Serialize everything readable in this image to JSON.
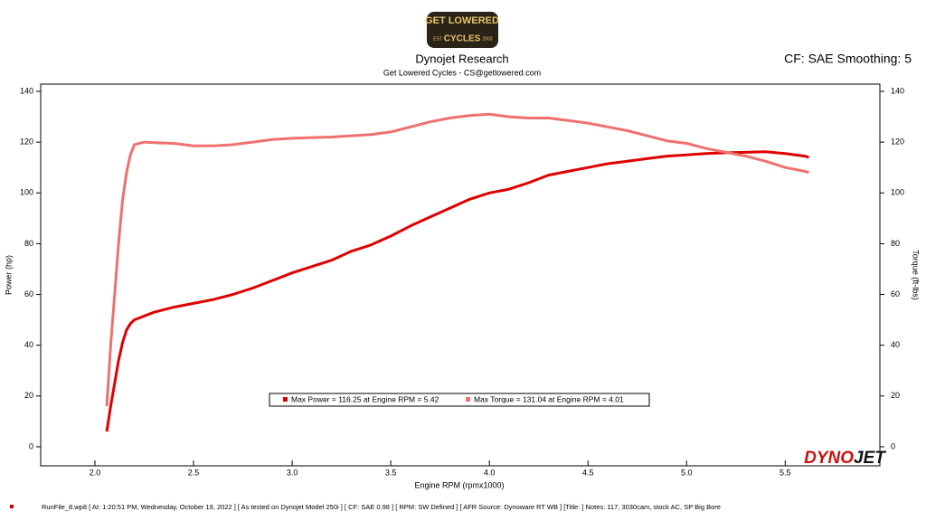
{
  "chart_data": {
    "type": "line",
    "logo": [
      "GET LOWERED",
      "CYCLES",
      "EST",
      "2003"
    ],
    "title": "Dynojet Research",
    "subtitle": "Get Lowered Cycles - CS@getlowered.com",
    "settings_text": "CF: SAE Smoothing: 5",
    "xlabel": "Engine RPM (rpmx1000)",
    "ylabel": "Power (hp)",
    "y2label": "Torque (ft-lbs)",
    "xlim": [
      1.725,
      5.98
    ],
    "ylim": [
      -7.5,
      142.85
    ],
    "y2lim": [
      -7.5,
      142.85
    ],
    "xticks": [
      {
        "value": 2,
        "label": "2.0"
      },
      2.5,
      {
        "value": 3,
        "label": "3.0"
      },
      3.5,
      {
        "value": 4,
        "label": "4.0"
      },
      4.5,
      {
        "value": 5,
        "label": "5.0"
      },
      5.5
    ],
    "yticks": [
      0,
      20,
      40,
      60,
      80,
      100,
      120,
      140
    ],
    "y2ticks": [
      0,
      20,
      40,
      60,
      80,
      100,
      120,
      140
    ],
    "x": [
      2.06,
      2.08,
      2.1,
      2.12,
      2.14,
      2.16,
      2.18,
      2.2,
      2.25,
      2.3,
      2.4,
      2.5,
      2.6,
      2.7,
      2.8,
      2.9,
      3.0,
      3.1,
      3.2,
      3.3,
      3.4,
      3.5,
      3.6,
      3.7,
      3.8,
      3.9,
      4.0,
      4.1,
      4.2,
      4.3,
      4.4,
      4.5,
      4.6,
      4.7,
      4.8,
      4.9,
      5.0,
      5.1,
      5.2,
      5.3,
      5.4,
      5.5,
      5.6,
      5.62
    ],
    "series": [
      {
        "name": "Max Power = 116.25 at Engine RPM = 5.42",
        "color": "#e00000",
        "values": [
          6,
          16,
          25,
          34,
          41,
          46,
          48.5,
          50,
          51.5,
          53,
          55,
          56.5,
          58,
          60,
          62.5,
          65.5,
          68.5,
          71,
          73.5,
          77,
          79.5,
          83,
          87,
          90.5,
          94,
          97.5,
          100,
          101.5,
          104,
          107,
          108.5,
          110,
          111.5,
          112.5,
          113.5,
          114.5,
          115,
          115.5,
          115.8,
          116,
          116.2,
          115.5,
          114.5,
          114
        ]
      },
      {
        "name": "Max Torque = 131.04 at Engine RPM = 4.01",
        "color": "#f07070",
        "axis": "y2",
        "values": [
          16,
          40,
          60,
          80,
          97,
          108,
          115,
          119,
          120,
          119.8,
          119.5,
          118.5,
          118.5,
          119,
          120,
          121,
          121.5,
          121.8,
          122,
          122.5,
          123,
          124,
          126,
          128,
          129.5,
          130.5,
          131,
          130,
          129.5,
          129.5,
          128.5,
          127.5,
          126,
          124.5,
          122.5,
          120.5,
          119.5,
          117.5,
          116,
          114.5,
          112.5,
          110,
          108.5,
          108
        ]
      }
    ],
    "brand": [
      "DYNO",
      "JET"
    ],
    "footer": "RunFile_8.wp8 [ At: 1:20:51 PM, Wednesday, October 19, 2022 ] [ As tested on Dynojet Model 250i ] [ CF: SAE 0.98 ] [ RPM: SW Defined ] [ AFR Source: Dynoware RT WB ] [Title: ]   Notes: 117, 3030cam, stock AC, SP Big Bore"
  }
}
